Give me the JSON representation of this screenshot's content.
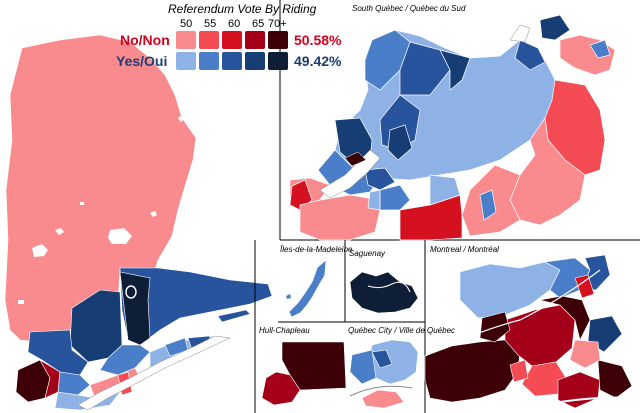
{
  "legend": {
    "title": "Referendum Vote By Riding",
    "ticks": [
      "50",
      "55",
      "60",
      "65",
      "70+"
    ],
    "no": {
      "label": "No/Non",
      "percent": "50.58%",
      "color": "#d5001c",
      "swatches": [
        "#f98a8e",
        "#f44b55",
        "#d5101f",
        "#a5001a",
        "#3c0006"
      ]
    },
    "yes": {
      "label": "Yes/Oui",
      "percent": "49.42%",
      "color": "#1d3e73",
      "swatches": [
        "#8fb2e6",
        "#4a7ec9",
        "#28549e",
        "#173d75",
        "#0d1e36"
      ]
    }
  },
  "insets": {
    "south": "South Québec / Québec du Sud",
    "iles": "Îles-de-la-Madeleine",
    "saguenay": "Saguenay",
    "montreal": "Montreal / Montréal",
    "hull": "Hull-Chapleau",
    "quebec_city": "Québec City / Ville de Québec"
  }
}
